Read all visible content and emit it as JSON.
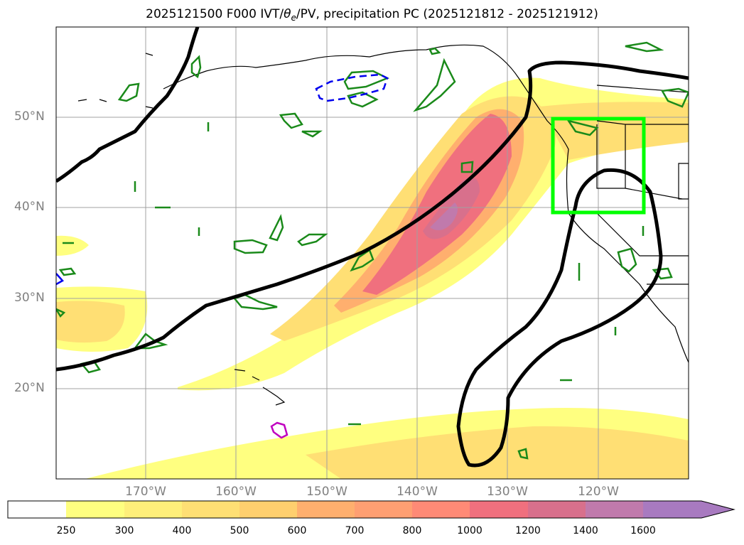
{
  "title": {
    "prefix": "2025121500 F000 IVT/",
    "theta": "θ",
    "theta_sub": "e",
    "suffix": "/PV, precipitation PC (2025121812 - 2025121912)"
  },
  "axes": {
    "lat_ticks": [
      "50°N",
      "40°N",
      "30°N",
      "20°N"
    ],
    "lon_ticks": [
      "170°W",
      "160°W",
      "150°W",
      "140°W",
      "130°W",
      "120°W"
    ],
    "lat_values": [
      50,
      40,
      30,
      20
    ],
    "lon_values": [
      -170,
      -160,
      -150,
      -140,
      -130,
      -120
    ],
    "lon_range": [
      -180,
      -110
    ],
    "lat_range": [
      10,
      60
    ],
    "grid": true
  },
  "colorbar": {
    "levels": [
      "250",
      "300",
      "400",
      "500",
      "600",
      "700",
      "800",
      "1000",
      "1200",
      "1400",
      "1600"
    ],
    "colors": [
      "#ffffff",
      "#ffff80",
      "#ffef7a",
      "#ffdf74",
      "#ffcf6e",
      "#ffaf6e",
      "#ff9f72",
      "#ff8a76",
      "#f0707e",
      "#d8708c",
      "#c07aac",
      "#a87ac0"
    ],
    "extend": "max"
  },
  "highlight_box": {
    "color": "#00ff00",
    "lon": [
      -125,
      -115
    ],
    "lat": [
      39.5,
      49.5
    ]
  }
}
